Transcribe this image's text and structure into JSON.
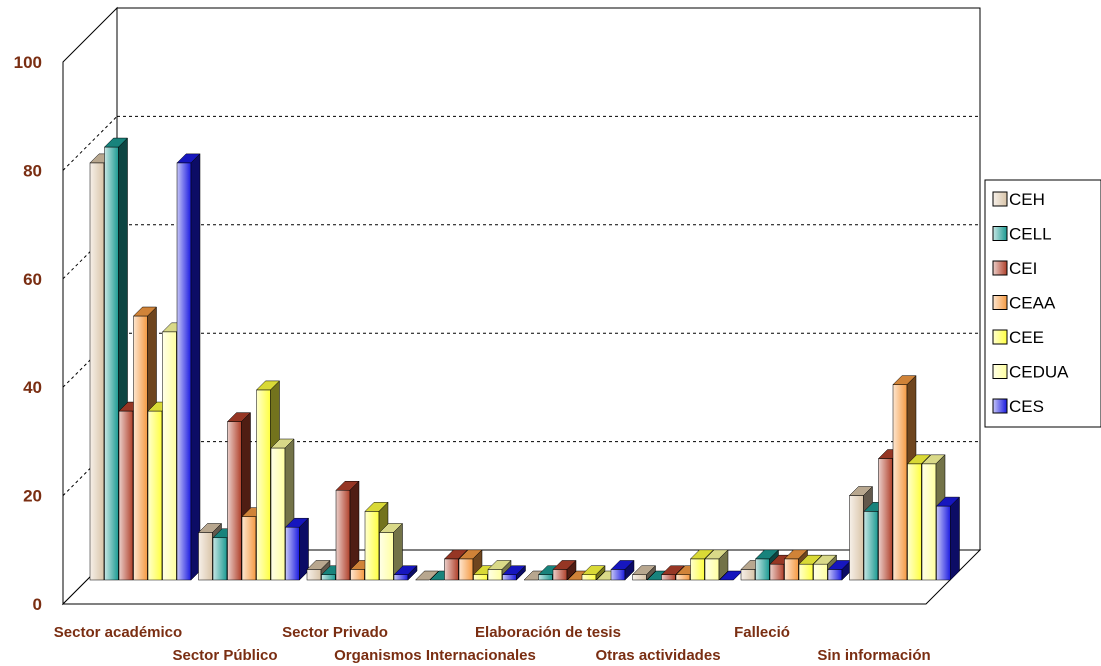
{
  "chart_data": {
    "type": "bar",
    "title": "",
    "xlabel": "",
    "ylabel": "",
    "ylim": [
      0,
      100
    ],
    "yticks": [
      "0",
      "20",
      "40",
      "60",
      "80",
      "100"
    ],
    "grid": true,
    "legend_position": "right",
    "categories": [
      "Sector académico",
      "Sector Público",
      "Sector Privado",
      "Organismos Internacionales",
      "Elaboración de tesis",
      "Otras actividades",
      "Falleció",
      "Sin información"
    ],
    "series": [
      {
        "name": "CEH",
        "color": "#d9c4a8",
        "values": [
          79,
          9,
          2,
          0,
          0,
          1,
          2,
          16
        ]
      },
      {
        "name": "CELL",
        "color": "#1c9a92",
        "values": [
          82,
          8,
          1,
          0,
          1,
          0,
          4,
          13
        ]
      },
      {
        "name": "CEI",
        "color": "#b0402a",
        "values": [
          32,
          30,
          17,
          4,
          2,
          1,
          3,
          23
        ]
      },
      {
        "name": "CEAA",
        "color": "#f59a42",
        "values": [
          50,
          12,
          2,
          4,
          0,
          1,
          4,
          37
        ]
      },
      {
        "name": "CEE",
        "color": "#ffff40",
        "values": [
          32,
          36,
          13,
          1,
          1,
          4,
          3,
          22
        ]
      },
      {
        "name": "CEDUA",
        "color": "#ffffa0",
        "values": [
          47,
          25,
          9,
          2,
          0,
          4,
          3,
          22
        ]
      },
      {
        "name": "CES",
        "color": "#1a1ae0",
        "values": [
          79,
          10,
          1,
          1,
          2,
          0,
          2,
          14
        ]
      }
    ]
  }
}
